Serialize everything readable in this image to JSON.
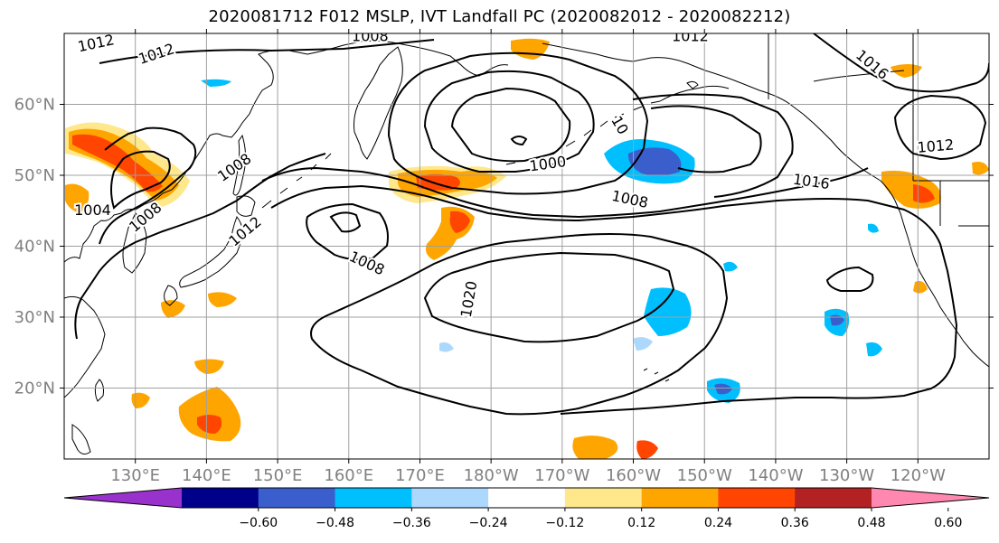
{
  "title": "2020081712 F012 MSLP, IVT Landfall PC (2020082012 - 2020082212)",
  "map": {
    "lat_ticks": [
      {
        "value": 60,
        "label": "60°N"
      },
      {
        "value": 50,
        "label": "50°N"
      },
      {
        "value": 40,
        "label": "40°N"
      },
      {
        "value": 30,
        "label": "30°N"
      },
      {
        "value": 20,
        "label": "20°N"
      }
    ],
    "lon_ticks": [
      {
        "value": 130,
        "label": "130°E"
      },
      {
        "value": 140,
        "label": "140°E"
      },
      {
        "value": 150,
        "label": "150°E"
      },
      {
        "value": 160,
        "label": "160°E"
      },
      {
        "value": 170,
        "label": "170°E"
      },
      {
        "value": 180,
        "label": "180°W"
      },
      {
        "value": 190,
        "label": "170°W"
      },
      {
        "value": 200,
        "label": "160°W"
      },
      {
        "value": 210,
        "label": "150°W"
      },
      {
        "value": 220,
        "label": "140°W"
      },
      {
        "value": 230,
        "label": "130°W"
      },
      {
        "value": 240,
        "label": "120°W"
      }
    ],
    "extent": {
      "lon_min": 120,
      "lon_max": 250,
      "lat_min": 10,
      "lat_max": 70
    },
    "contour_labels": [
      {
        "text": "1012",
        "lon": 124.5,
        "lat": 68.5,
        "angle": -12
      },
      {
        "text": "1012",
        "lon": 133,
        "lat": 67,
        "angle": -18
      },
      {
        "text": "1008",
        "lon": 163,
        "lat": 69.5,
        "angle": 0
      },
      {
        "text": "1012",
        "lon": 208,
        "lat": 69.5,
        "angle": 0
      },
      {
        "text": "1016",
        "lon": 233.5,
        "lat": 65.5,
        "angle": 40
      },
      {
        "text": "10",
        "lon": 198,
        "lat": 57,
        "angle": 60
      },
      {
        "text": "1000",
        "lon": 188,
        "lat": 51.5,
        "angle": -8
      },
      {
        "text": "1008",
        "lon": 144,
        "lat": 51,
        "angle": -35
      },
      {
        "text": "1004",
        "lon": 124,
        "lat": 45,
        "angle": 0
      },
      {
        "text": "1008",
        "lon": 131.5,
        "lat": 44,
        "angle": -40
      },
      {
        "text": "1012",
        "lon": 145.5,
        "lat": 42,
        "angle": -40
      },
      {
        "text": "1008",
        "lon": 199.5,
        "lat": 46.5,
        "angle": 12
      },
      {
        "text": "1016",
        "lon": 225,
        "lat": 49,
        "angle": 8
      },
      {
        "text": "1012",
        "lon": 242.5,
        "lat": 54,
        "angle": -5
      },
      {
        "text": "1008",
        "lon": 162.5,
        "lat": 37.5,
        "angle": 25
      },
      {
        "text": "1020",
        "lon": 177,
        "lat": 32.5,
        "angle": -80
      }
    ]
  },
  "colorbar": {
    "colors": [
      "#9932cc",
      "#00008b",
      "#3a5fcd",
      "#00bfff",
      "#add8fe",
      "#ffffff",
      "#ffe88c",
      "#ffa500",
      "#ff4500",
      "#b22222",
      "#ff88b0"
    ],
    "labels": [
      "−0.60",
      "−0.48",
      "−0.36",
      "−0.24",
      "−0.12",
      "0.12",
      "0.24",
      "0.36",
      "0.48",
      "0.60"
    ]
  }
}
